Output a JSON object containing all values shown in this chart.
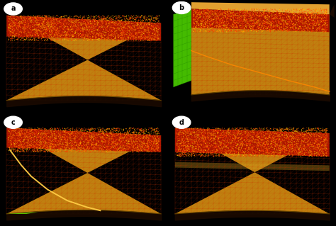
{
  "background_color": "#000000",
  "panel_labels": [
    "a",
    "b",
    "c",
    "d"
  ],
  "body_color": "#C8900A",
  "body_color2": "#B07808",
  "red_top_color": "#CC2200",
  "red_noise_color1": "#FF4400",
  "red_noise_color2": "#FFAA00",
  "grid_color": "#CC4400",
  "grid_alpha": 0.55,
  "green_color": "#55DD00",
  "green_dark": "#228800",
  "black": "#000000",
  "white": "#FFFFFF"
}
